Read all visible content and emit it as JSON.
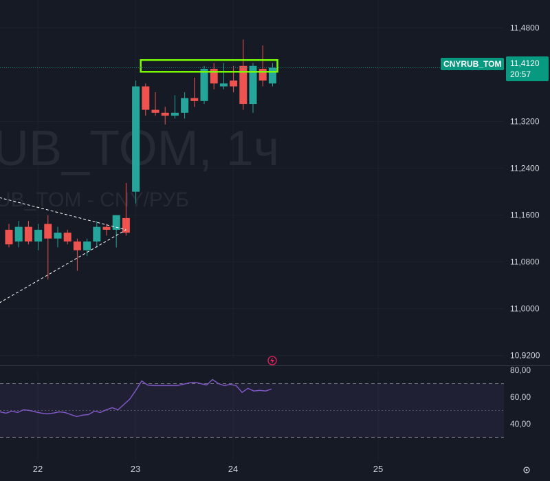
{
  "watermark": {
    "main": "UB_TOM, 1ч",
    "sub": "UB_TOM - CNY/РУБ"
  },
  "symbol_badge": "CNYRUB_TOM",
  "last_price": {
    "value": "11,4120",
    "countdown": "20:57"
  },
  "colors": {
    "up": "#26a69a",
    "down": "#ef5350",
    "rsi": "#7e57c2",
    "highlight": "#7cfc00",
    "badge": "#089981"
  },
  "chart_data": [
    {
      "type": "candlestick",
      "title": "",
      "xlabel": "",
      "ylabel": "",
      "x_ticks": [
        "22",
        "23",
        "24",
        "25"
      ],
      "y_ticks": [
        "11,4800",
        "11,3200",
        "11,2400",
        "11,1600",
        "11,0800",
        "11,0000",
        "10,9200"
      ],
      "ylim": [
        10.915,
        11.49
      ],
      "candles": [
        {
          "o": 11.135,
          "h": 11.145,
          "l": 11.105,
          "c": 11.11
        },
        {
          "o": 11.115,
          "h": 11.15,
          "l": 11.105,
          "c": 11.14
        },
        {
          "o": 11.14,
          "h": 11.15,
          "l": 11.11,
          "c": 11.115
        },
        {
          "o": 11.115,
          "h": 11.145,
          "l": 11.1,
          "c": 11.135
        },
        {
          "o": 11.145,
          "h": 11.16,
          "l": 11.05,
          "c": 11.12
        },
        {
          "o": 11.12,
          "h": 11.14,
          "l": 11.105,
          "c": 11.13
        },
        {
          "o": 11.13,
          "h": 11.135,
          "l": 11.11,
          "c": 11.115
        },
        {
          "o": 11.115,
          "h": 11.12,
          "l": 11.065,
          "c": 11.1
        },
        {
          "o": 11.1,
          "h": 11.12,
          "l": 11.09,
          "c": 11.115
        },
        {
          "o": 11.115,
          "h": 11.15,
          "l": 11.105,
          "c": 11.14
        },
        {
          "o": 11.14,
          "h": 11.145,
          "l": 11.125,
          "c": 11.135
        },
        {
          "o": 11.135,
          "h": 11.16,
          "l": 11.105,
          "c": 11.16
        },
        {
          "o": 11.155,
          "h": 11.215,
          "l": 11.125,
          "c": 11.13
        },
        {
          "o": 11.2,
          "h": 11.39,
          "l": 11.18,
          "c": 11.38
        },
        {
          "o": 11.38,
          "h": 11.385,
          "l": 11.33,
          "c": 11.34
        },
        {
          "o": 11.34,
          "h": 11.37,
          "l": 11.33,
          "c": 11.335
        },
        {
          "o": 11.335,
          "h": 11.345,
          "l": 11.315,
          "c": 11.33
        },
        {
          "o": 11.33,
          "h": 11.365,
          "l": 11.325,
          "c": 11.335
        },
        {
          "o": 11.335,
          "h": 11.37,
          "l": 11.325,
          "c": 11.36
        },
        {
          "o": 11.36,
          "h": 11.395,
          "l": 11.345,
          "c": 11.355
        },
        {
          "o": 11.355,
          "h": 11.415,
          "l": 11.35,
          "c": 11.41
        },
        {
          "o": 11.41,
          "h": 11.42,
          "l": 11.375,
          "c": 11.385
        },
        {
          "o": 11.38,
          "h": 11.42,
          "l": 11.375,
          "c": 11.385
        },
        {
          "o": 11.39,
          "h": 11.415,
          "l": 11.37,
          "c": 11.38
        },
        {
          "o": 11.415,
          "h": 11.46,
          "l": 11.34,
          "c": 11.35
        },
        {
          "o": 11.35,
          "h": 11.42,
          "l": 11.335,
          "c": 11.415
        },
        {
          "o": 11.41,
          "h": 11.45,
          "l": 11.38,
          "c": 11.39
        },
        {
          "o": 11.385,
          "h": 11.42,
          "l": 11.38,
          "c": 11.412
        }
      ],
      "annotations": {
        "upper_trendline": {
          "from": [
            0,
            11.19
          ],
          "to": [
            12,
            11.135
          ]
        },
        "lower_trendline": {
          "from": [
            0,
            11.01
          ],
          "to": [
            12,
            11.135
          ]
        },
        "resistance_box": {
          "from_index": 13.5,
          "to_index": 27.5,
          "low": 11.405,
          "high": 11.425
        },
        "last_price_line": 11.412
      }
    },
    {
      "type": "line",
      "title": "",
      "y_ticks": [
        "80,00",
        "60,00",
        "40,00"
      ],
      "ylim": [
        20,
        80
      ],
      "bands": [
        30,
        50,
        70
      ],
      "series": [
        {
          "values": [
            49.0,
            48.0,
            49.5,
            48.5,
            50.5,
            50.0,
            49.0,
            48.0,
            47.5,
            48.0,
            49.0,
            48.5,
            47.0,
            45.5,
            46.5,
            47.0,
            49.5,
            48.5,
            50.5,
            52.0,
            50.5,
            54.5,
            58.5,
            65.0,
            72.0,
            69.0,
            68.5,
            68.5,
            68.5,
            68.5,
            68.5,
            69.5,
            70.5,
            71.0,
            70.0,
            69.0,
            73.0,
            70.0,
            68.5,
            69.5,
            68.5,
            63.5,
            66.5,
            64.5,
            65.0,
            64.5,
            66.0
          ]
        }
      ]
    }
  ]
}
